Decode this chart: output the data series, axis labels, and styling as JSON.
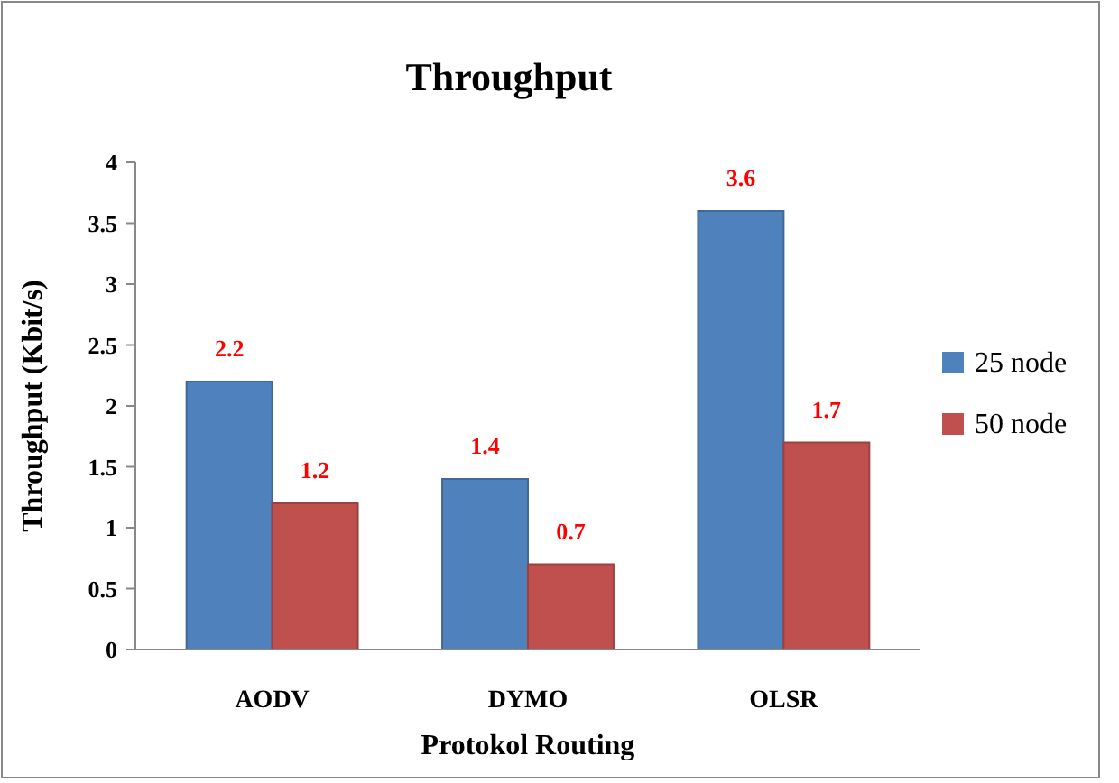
{
  "chart_data": {
    "type": "bar",
    "title": "Throughput",
    "xlabel": "Protokol Routing",
    "ylabel": "Throughput  (Kbit/s)",
    "categories": [
      "AODV",
      "DYMO",
      "OLSR"
    ],
    "series": [
      {
        "name": "25 node",
        "color": "#4f81bd",
        "values": [
          2.2,
          1.4,
          3.6
        ]
      },
      {
        "name": "50 node",
        "color": "#c0504d",
        "values": [
          1.2,
          0.7,
          1.7
        ]
      }
    ],
    "ylim": [
      0,
      4
    ],
    "yticks": [
      0,
      0.5,
      1,
      1.5,
      2,
      2.5,
      3,
      3.5,
      4
    ],
    "grid": false,
    "legend": "right",
    "data_labels": true
  }
}
